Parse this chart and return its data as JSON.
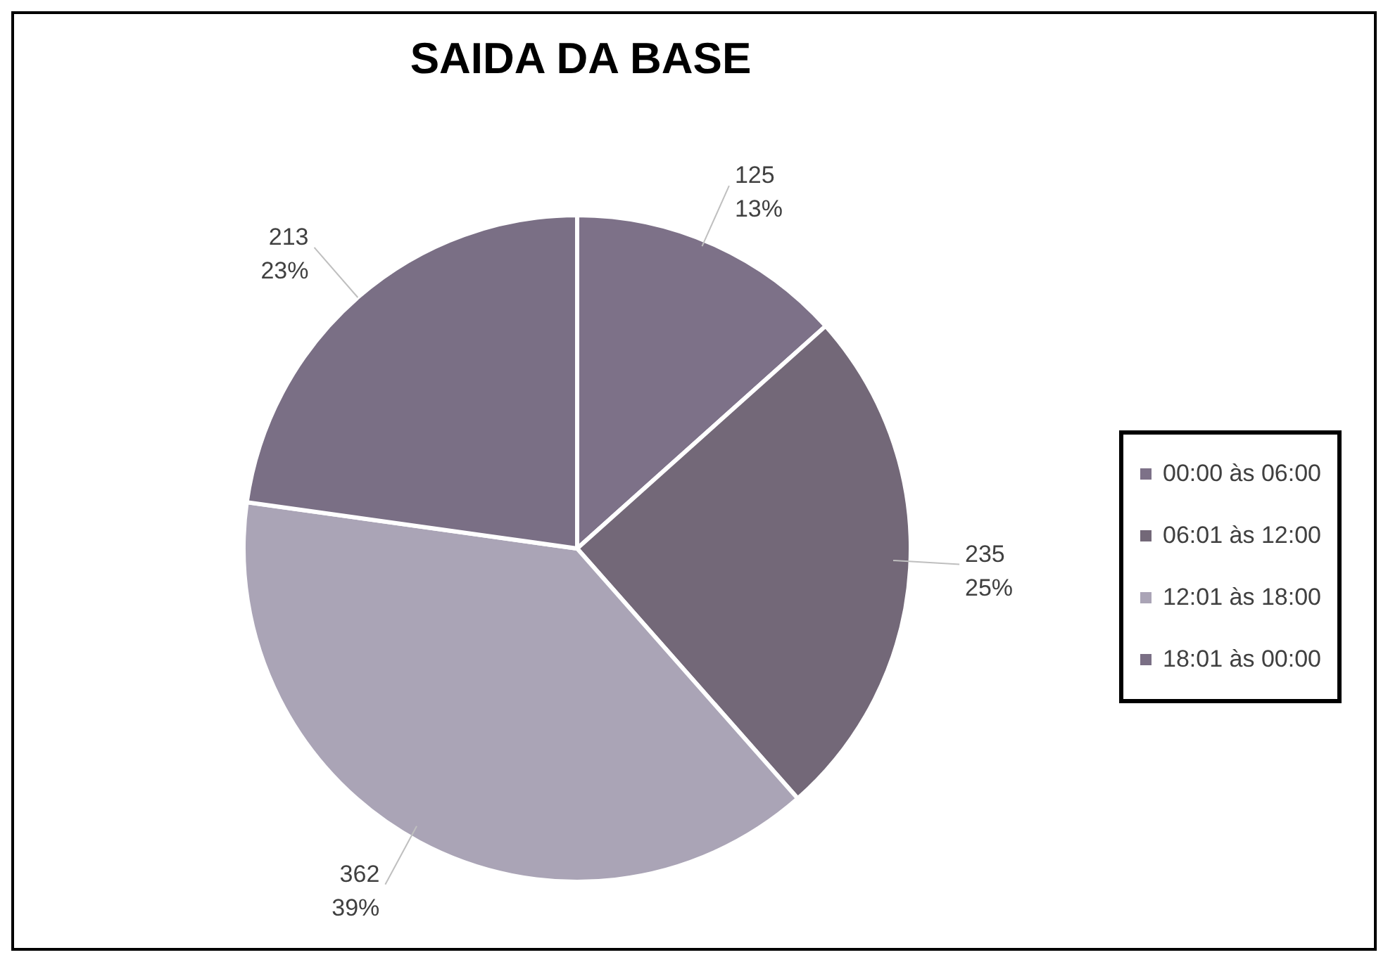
{
  "chart_data": {
    "type": "pie",
    "title": "SAIDA DA BASE",
    "categories": [
      "00:00 às 06:00",
      "06:01 às 12:00",
      "12:01 às 18:00",
      "18:01 às 00:00"
    ],
    "values": [
      125,
      235,
      362,
      213
    ],
    "colors": [
      "#7d7188",
      "#736878",
      "#aaa4b6",
      "#7a6f85"
    ],
    "value_labels": [
      "125\n13%",
      "235\n25%",
      "362\n39%",
      "213\n23%"
    ],
    "legend": "right"
  }
}
